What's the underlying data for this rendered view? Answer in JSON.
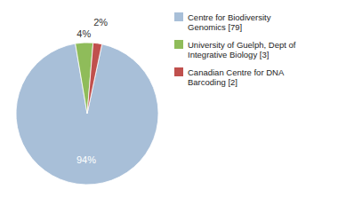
{
  "chart_data": {
    "type": "pie",
    "categories": [
      "Centre for Biodiversity\nGenomics [79]",
      "University of Guelph, Dept of\nIntegrative Biology [3]",
      "Canadian Centre for DNA\nBarcoding [2]"
    ],
    "values": [
      94,
      4,
      2
    ],
    "value_labels": [
      "94%",
      "4%",
      "2%"
    ],
    "colors": [
      "#a8bfd8",
      "#8fbc5a",
      "#c0504d"
    ],
    "data_labels": true,
    "legend": "right"
  }
}
